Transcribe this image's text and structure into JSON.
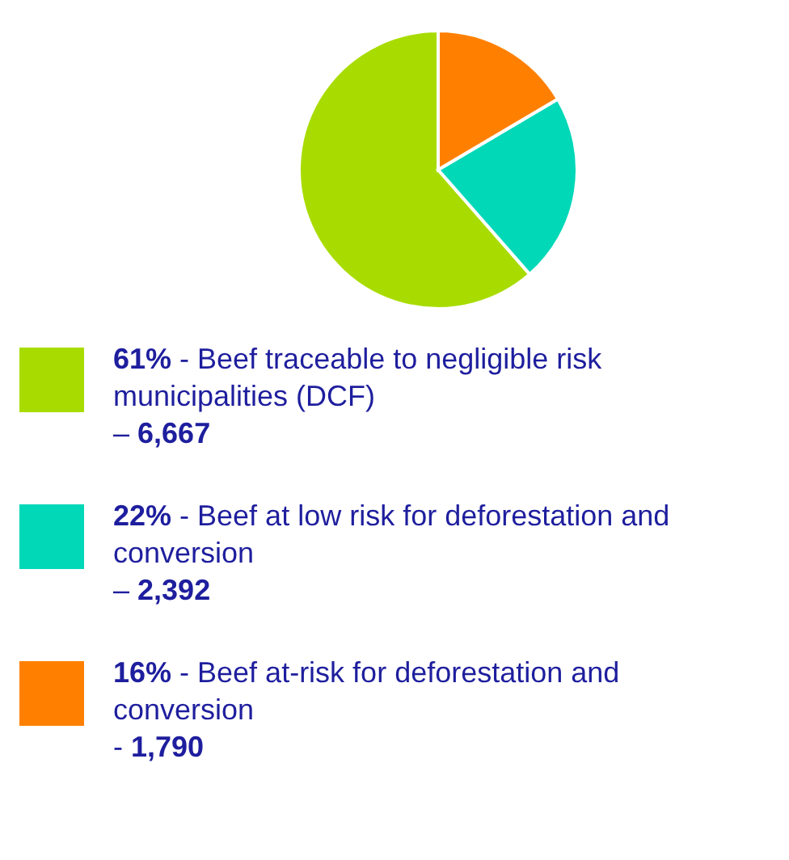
{
  "chart_data": {
    "type": "pie",
    "categories": [
      "61% - Beef traceable to negligible risk municipalities (DCF) –",
      "22% - Beef at low risk for deforestation and conversion –",
      "16% - Beef at-risk for deforestation and conversion -"
    ],
    "values": [
      6667,
      2392,
      1790
    ],
    "value_labels": [
      "6,667",
      "2,392",
      "1,790"
    ],
    "colors": [
      "#a8dc00",
      "#00d8b8",
      "#ff8000"
    ],
    "legend": "bottom"
  }
}
